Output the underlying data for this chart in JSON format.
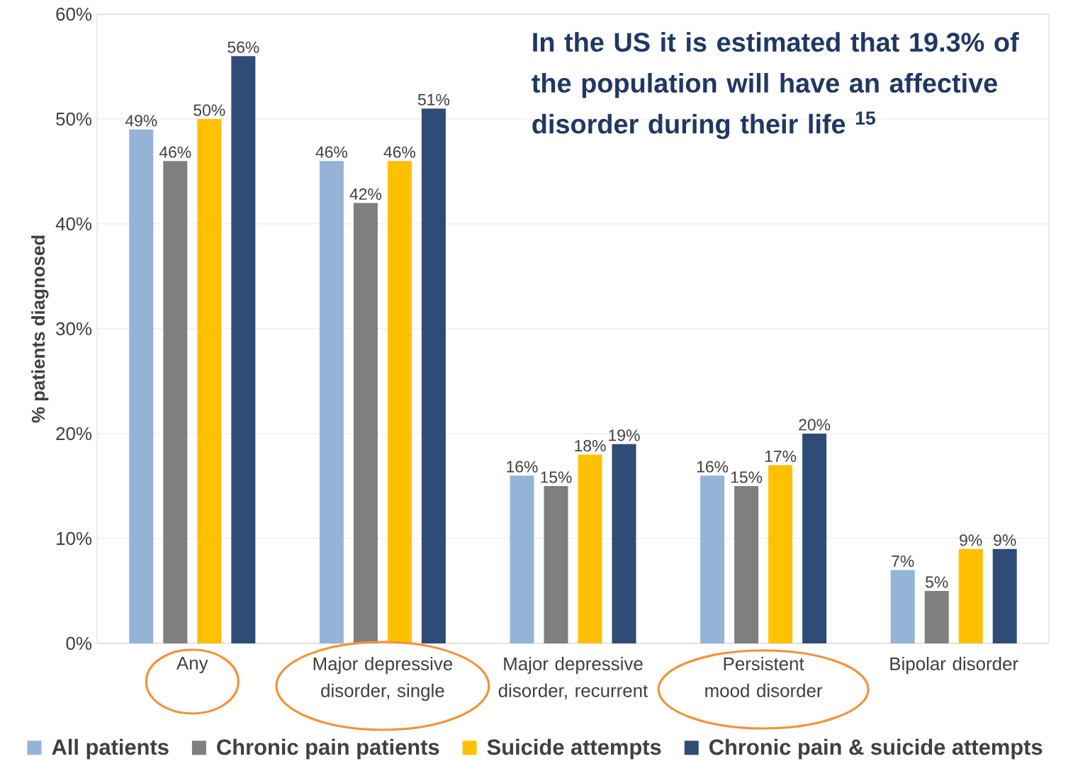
{
  "chart_data": {
    "type": "bar",
    "ylabel": "% patients diagnosed",
    "categories": [
      "Any",
      "Major depressive disorder, single",
      "Major depressive disorder, recurrent",
      "Persistent mood disorder",
      "Bipolar disorder"
    ],
    "series": [
      {
        "name": "All patients",
        "color": "#95b3d7",
        "values": [
          49,
          46,
          16,
          16,
          7
        ],
        "value_labels": [
          "49%",
          "46%",
          "16%",
          "16%",
          "7%"
        ]
      },
      {
        "name": "Chronic pain patients",
        "color": "#7f7f7f",
        "values": [
          46,
          42,
          15,
          15,
          5
        ],
        "value_labels": [
          "46%",
          "42%",
          "15%",
          "15%",
          "5%"
        ]
      },
      {
        "name": "Suicide attempts",
        "color": "#ffc000",
        "values": [
          50,
          46,
          18,
          17,
          9
        ],
        "value_labels": [
          "50%",
          "46%",
          "18%",
          "17%",
          "9%"
        ]
      },
      {
        "name": "Chronic pain & suicide attempts",
        "color": "#2e4c76",
        "values": [
          56,
          51,
          19,
          20,
          9
        ],
        "value_labels": [
          "56%",
          "51%",
          "19%",
          "20%",
          "9%"
        ]
      }
    ],
    "ylim": [
      0,
      60
    ],
    "yticks": [
      {
        "value": 0,
        "label": "0%"
      },
      {
        "value": 10,
        "label": "10%"
      },
      {
        "value": 20,
        "label": "20%"
      },
      {
        "value": 30,
        "label": "30%"
      },
      {
        "value": 40,
        "label": "40%"
      },
      {
        "value": 50,
        "label": "50%"
      },
      {
        "value": 60,
        "label": "60%"
      }
    ],
    "grid": "y",
    "legend": "bottom",
    "annotations": [
      "In the US it is estimated that 19.3% of the population will have an affective disorder during their life $^{15}$"
    ]
  }
}
